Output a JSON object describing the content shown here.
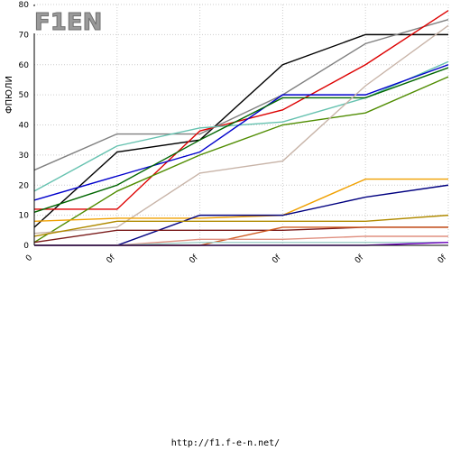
{
  "logo": {
    "text": "F1EN"
  },
  "footer": {
    "url": "http://f1.f-e-n.net/"
  },
  "chart_data": {
    "type": "line",
    "ylabel": "ФПЮЛИ",
    "xlabel": "",
    "categories": [
      "0",
      "0f",
      "0f",
      "0f",
      "0f",
      "0f"
    ],
    "ylim": [
      0,
      80
    ],
    "yticks": [
      0,
      10,
      20,
      30,
      40,
      50,
      60,
      70,
      80
    ],
    "grid": true,
    "legend": "none",
    "series": [
      {
        "color": "#000000",
        "values": [
          6,
          31,
          35,
          60,
          70,
          70
        ]
      },
      {
        "color": "#808080",
        "values": [
          25,
          37,
          37,
          50,
          67,
          75
        ]
      },
      {
        "color": "#dd0000",
        "values": [
          12,
          12,
          38,
          45,
          60,
          78
        ]
      },
      {
        "color": "#66c2b0",
        "values": [
          18,
          33,
          39,
          41,
          49,
          61
        ]
      },
      {
        "color": "#0000cc",
        "values": [
          15,
          23,
          31,
          50,
          50,
          60
        ]
      },
      {
        "color": "#006600",
        "values": [
          11,
          20,
          35,
          49,
          49,
          59
        ]
      },
      {
        "color": "#4f8c00",
        "values": [
          1,
          18,
          30,
          40,
          44,
          56
        ]
      },
      {
        "color": "#c8b4a8",
        "values": [
          4,
          6,
          24,
          28,
          53,
          73
        ]
      },
      {
        "color": "#f0a000",
        "values": [
          8,
          9,
          9,
          10,
          22,
          22
        ]
      },
      {
        "color": "#000080",
        "values": [
          0,
          0,
          10,
          10,
          16,
          20
        ]
      },
      {
        "color": "#b08a00",
        "values": [
          3,
          8,
          8,
          8,
          8,
          10
        ]
      },
      {
        "color": "#7a1a1a",
        "values": [
          1,
          5,
          5,
          5,
          6,
          6
        ]
      },
      {
        "color": "#d05a20",
        "values": [
          0,
          0,
          0,
          6,
          6,
          6
        ]
      },
      {
        "color": "#e09080",
        "values": [
          0,
          0,
          2,
          2,
          3,
          3
        ]
      },
      {
        "color": "#a0d0c8",
        "values": [
          0,
          0,
          1,
          1,
          1,
          1
        ]
      },
      {
        "color": "#7000c0",
        "values": [
          0,
          0,
          0,
          0,
          0,
          1
        ]
      }
    ]
  }
}
